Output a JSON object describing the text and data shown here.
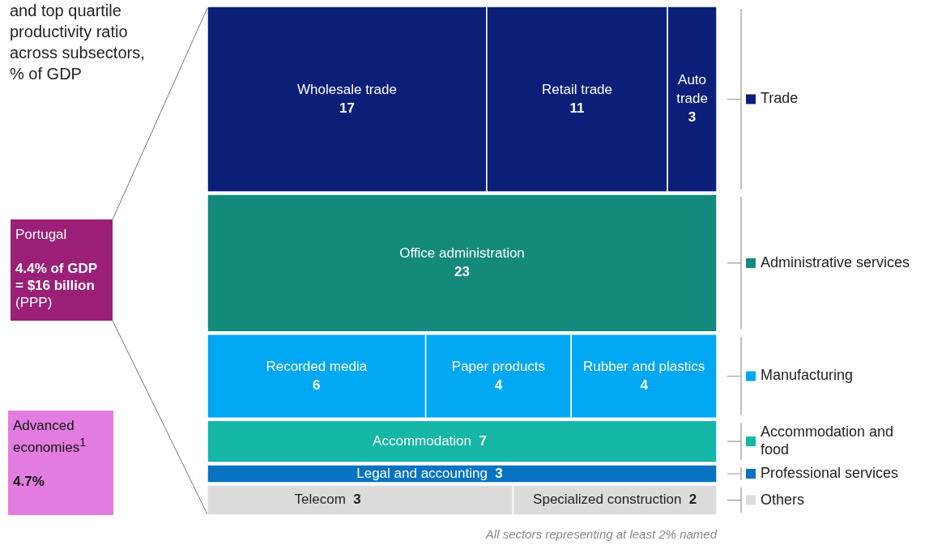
{
  "chart_data": {
    "type": "other",
    "title": "and top quartile productivity ratio across subsectors, % of GDP",
    "categories": [
      "Wholesale trade",
      "Retail trade",
      "Auto trade",
      "Office administration",
      "Recorded media",
      "Paper products",
      "Rubber and plastics",
      "Accommodation",
      "Legal and accounting",
      "Telecom",
      "Specialized construction"
    ],
    "series": [
      {
        "name": "Trade",
        "color": "#0b1f78",
        "values": [
          17,
          11,
          3,
          null,
          null,
          null,
          null,
          null,
          null,
          null,
          null
        ],
        "value_labels": [
          "17",
          "11",
          "3",
          null,
          null,
          null,
          null,
          null,
          null,
          null,
          null
        ]
      },
      {
        "name": "Administrative services",
        "color": "#138a7c",
        "values": [
          null,
          null,
          null,
          23,
          null,
          null,
          null,
          null,
          null,
          null,
          null
        ],
        "value_labels": [
          null,
          null,
          null,
          "23",
          null,
          null,
          null,
          null,
          null,
          null,
          null
        ]
      },
      {
        "name": "Manufacturing",
        "color": "#00a8f3",
        "values": [
          null,
          null,
          null,
          null,
          6,
          4,
          4,
          null,
          null,
          null,
          null
        ],
        "value_labels": [
          null,
          null,
          null,
          null,
          "6",
          "4",
          "4",
          null,
          null,
          null,
          null
        ]
      },
      {
        "name": "Accommodation and food",
        "color": "#14b6a5",
        "values": [
          null,
          null,
          null,
          null,
          null,
          null,
          null,
          7,
          null,
          null,
          null
        ],
        "value_labels": [
          null,
          null,
          null,
          null,
          null,
          null,
          null,
          "7",
          null,
          null,
          null
        ]
      },
      {
        "name": "Professional services",
        "color": "#0873c0",
        "values": [
          null,
          null,
          null,
          null,
          null,
          null,
          null,
          null,
          3,
          null,
          null
        ],
        "value_labels": [
          null,
          null,
          null,
          null,
          null,
          null,
          null,
          null,
          "3",
          null,
          null
        ]
      },
      {
        "name": "Others",
        "color": "#dcdcdc",
        "values": [
          null,
          null,
          null,
          null,
          null,
          null,
          null,
          null,
          null,
          3,
          2
        ],
        "value_labels": [
          null,
          null,
          null,
          null,
          null,
          null,
          null,
          null,
          null,
          "3",
          "2"
        ]
      }
    ],
    "legend": "right",
    "annotations": [
      "Portugal",
      "4.4% of GDP = $16 billion",
      "(PPP)",
      "Advanced economies$^{1}$",
      "4.7%",
      "All sectors representing at least 2% named"
    ]
  }
}
